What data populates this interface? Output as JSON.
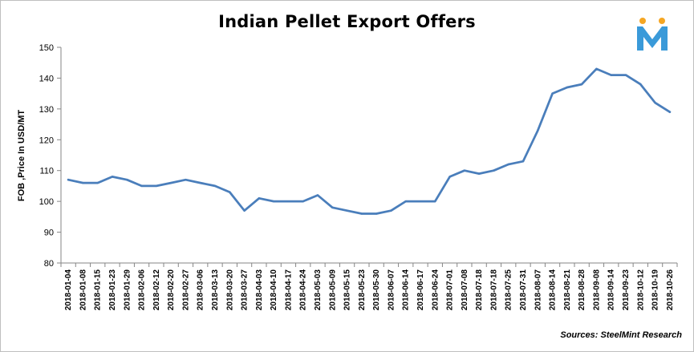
{
  "chart_data": {
    "type": "line",
    "title": "Indian Pellet Export Offers",
    "xlabel": "",
    "ylabel": "FOB ,Price In USD/MT",
    "ylim": [
      80,
      150
    ],
    "yticks": [
      80,
      90,
      100,
      110,
      120,
      130,
      140,
      150
    ],
    "grid": false,
    "legend": "none",
    "categories": [
      "2018-01-04",
      "2018-01-08",
      "2018-01-15",
      "2018-01-23",
      "2018-01-29",
      "2018-02-06",
      "2018-02-12",
      "2018-02-20",
      "2018-02-27",
      "2018-03-06",
      "2018-03-13",
      "2018-03-20",
      "2018-03-27",
      "2018-04-03",
      "2018-04-10",
      "2018-04-17",
      "2018-04-24",
      "2018-05-03",
      "2018-05-09",
      "2018-05-15",
      "2018-05-23",
      "2018-05-30",
      "2018-06-07",
      "2018-06-14",
      "2018-06-17",
      "2018-06-24",
      "2018-07-01",
      "2018-07-08",
      "2018-07-18",
      "2018-07-18",
      "2018-07-25",
      "2018-07-31",
      "2018-08-07",
      "2018-08-14",
      "2018-08-21",
      "2018-08-28",
      "2018-09-08",
      "2018-09-14",
      "2018-09-23",
      "2018-10-12",
      "2018-10-19",
      "2018-10-26"
    ],
    "series": [
      {
        "values": [
          107,
          106,
          106,
          108,
          107,
          105,
          105,
          106,
          107,
          106,
          105,
          103,
          97,
          101,
          100,
          100,
          100,
          102,
          98,
          97,
          96,
          96,
          97,
          100,
          100,
          100,
          108,
          110,
          109,
          110,
          112,
          113,
          123,
          135,
          137,
          138,
          143,
          141,
          141,
          138,
          132,
          129
        ],
        "color": "#4a7ebb"
      }
    ],
    "source": "Sources: SteelMint Research",
    "logo": {
      "name": "steelmint-logo",
      "letter_color": "#3a9ad9",
      "dot_color": "#f5a623"
    }
  }
}
